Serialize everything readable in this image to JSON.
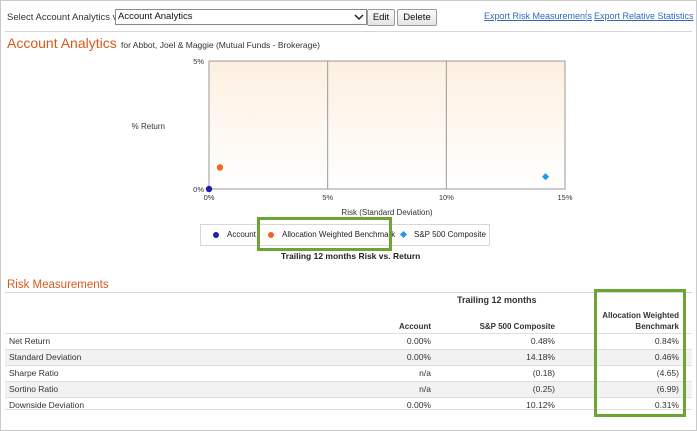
{
  "toolbar": {
    "view_label": "Select Account Analytics view:",
    "view_value": "Account Analytics",
    "edit_label": "Edit",
    "delete_label": "Delete",
    "export_risk_label": "Export Risk Measurements",
    "export_relative_label": "Export Relative Statistics"
  },
  "header": {
    "title": "Account Analytics",
    "subtitle": "for Abbot, Joel & Maggie (Mutual Funds - Brokerage)"
  },
  "colors": {
    "accent": "#d85a1a",
    "link": "#2f6bbd",
    "highlight": "#6ea433",
    "account": "#1f1fa8",
    "benchmark": "#f26522",
    "sp500": "#1e9be6"
  },
  "chart_data": {
    "type": "scatter",
    "title": "Trailing 12 months Risk vs. Return",
    "xlabel": "Risk (Standard Deviation)",
    "ylabel": "% Return",
    "xlim": [
      0,
      15
    ],
    "ylim": [
      0,
      5
    ],
    "x_ticks": [
      "0%",
      "5%",
      "10%",
      "15%"
    ],
    "y_ticks": [
      "0%",
      "5%"
    ],
    "legend_position": "bottom",
    "series": [
      {
        "name": "Account",
        "marker": "circle",
        "color": "#1f1fa8",
        "x": 0.0,
        "y": 0.0
      },
      {
        "name": "Allocation Weighted Benchmark",
        "marker": "circle",
        "color": "#f26522",
        "x": 0.46,
        "y": 0.84
      },
      {
        "name": "S&P 500 Composite",
        "marker": "diamond",
        "color": "#1e9be6",
        "x": 14.18,
        "y": 0.48
      }
    ]
  },
  "risk": {
    "title": "Risk Measurements",
    "group_header": "Trailing 12 months",
    "columns": [
      "Account",
      "S&P 500 Composite",
      "Allocation Weighted Benchmark"
    ],
    "rows": [
      {
        "label": "Net Return",
        "account": "0.00%",
        "sp500": "0.48%",
        "alloc": "0.84%"
      },
      {
        "label": "Standard Deviation",
        "account": "0.00%",
        "sp500": "14.18%",
        "alloc": "0.46%"
      },
      {
        "label": "Sharpe Ratio",
        "account": "n/a",
        "sp500": "(0.18)",
        "alloc": "(4.65)"
      },
      {
        "label": "Sortino Ratio",
        "account": "n/a",
        "sp500": "(0.25)",
        "alloc": "(6.99)"
      },
      {
        "label": "Downside Deviation",
        "account": "0.00%",
        "sp500": "10.12%",
        "alloc": "0.31%"
      }
    ],
    "footer_cut": ""
  }
}
